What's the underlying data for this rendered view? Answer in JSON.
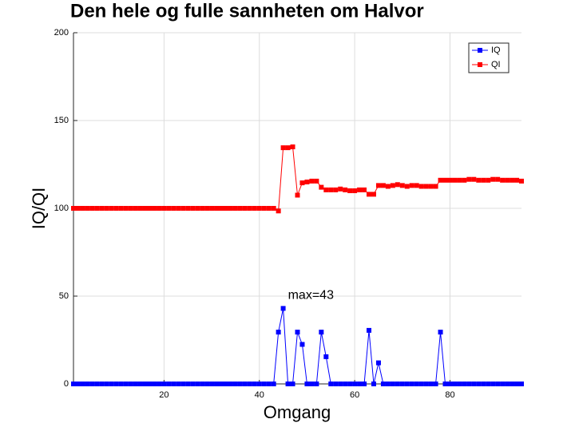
{
  "chart_data": {
    "type": "line",
    "title": "Den hele og fulle sannheten om Halvor",
    "xlabel": "Omgang",
    "ylabel": "IQ/QI",
    "annotation": "max=43",
    "x": [
      1,
      2,
      3,
      4,
      5,
      6,
      7,
      8,
      9,
      10,
      11,
      12,
      13,
      14,
      15,
      16,
      17,
      18,
      19,
      20,
      21,
      22,
      23,
      24,
      25,
      26,
      27,
      28,
      29,
      30,
      31,
      32,
      33,
      34,
      35,
      36,
      37,
      38,
      39,
      40,
      41,
      42,
      43,
      44,
      45,
      46,
      47,
      48,
      49,
      50,
      51,
      52,
      53,
      54,
      55,
      56,
      57,
      58,
      59,
      60,
      61,
      62,
      63,
      64,
      65,
      66,
      67,
      68,
      69,
      70,
      71,
      72,
      73,
      74,
      75,
      76,
      77,
      78,
      79,
      80,
      81,
      82,
      83,
      84,
      85,
      86,
      87,
      88,
      89,
      90,
      91,
      92,
      93,
      94,
      95
    ],
    "series": [
      {
        "name": "IQ",
        "color": "#0000ff",
        "values": [
          0,
          0,
          0,
          0,
          0,
          0,
          0,
          0,
          0,
          0,
          0,
          0,
          0,
          0,
          0,
          0,
          0,
          0,
          0,
          0,
          0,
          0,
          0,
          0,
          0,
          0,
          0,
          0,
          0,
          0,
          0,
          0,
          0,
          0,
          0,
          0,
          0,
          0,
          0,
          0,
          0,
          0,
          0,
          29.5,
          43,
          0,
          0,
          29.5,
          22.5,
          0,
          0,
          0,
          29.5,
          15.5,
          0,
          0,
          0,
          0,
          0,
          0,
          0,
          0,
          30.5,
          0,
          12,
          0,
          0,
          0,
          0,
          0,
          0,
          0,
          0,
          0,
          0,
          0,
          0,
          29.5,
          0,
          0,
          0,
          0,
          0,
          0,
          0,
          0,
          0,
          0,
          0,
          0,
          0,
          0,
          0,
          0,
          0
        ]
      },
      {
        "name": "QI",
        "color": "#ff0000",
        "values": [
          100,
          100,
          100,
          100,
          100,
          100,
          100,
          100,
          100,
          100,
          100,
          100,
          100,
          100,
          100,
          100,
          100,
          100,
          100,
          100,
          100,
          100,
          100,
          100,
          100,
          100,
          100,
          100,
          100,
          100,
          100,
          100,
          100,
          100,
          100,
          100,
          100,
          100,
          100,
          100,
          100,
          100,
          100,
          98.5,
          134.5,
          134.5,
          135,
          107.5,
          114.5,
          115,
          115.5,
          115.5,
          112,
          110.5,
          110.5,
          110.5,
          111,
          110.5,
          110,
          110,
          110.5,
          110.5,
          108,
          108,
          113,
          113,
          112.5,
          113,
          113.5,
          113,
          112.5,
          113,
          113,
          112.5,
          112.5,
          112.5,
          112.5,
          116,
          116,
          116,
          116,
          116,
          116,
          116.5,
          116.5,
          116,
          116,
          116,
          116.5,
          116.5,
          116,
          116,
          116,
          116,
          115.5
        ]
      }
    ],
    "xlim": [
      1,
      95
    ],
    "ylim": [
      0,
      200
    ],
    "xticks": [
      20,
      40,
      60,
      80
    ],
    "yticks": [
      0,
      50,
      100,
      150,
      200
    ],
    "grid": true,
    "legend": "northeast"
  }
}
